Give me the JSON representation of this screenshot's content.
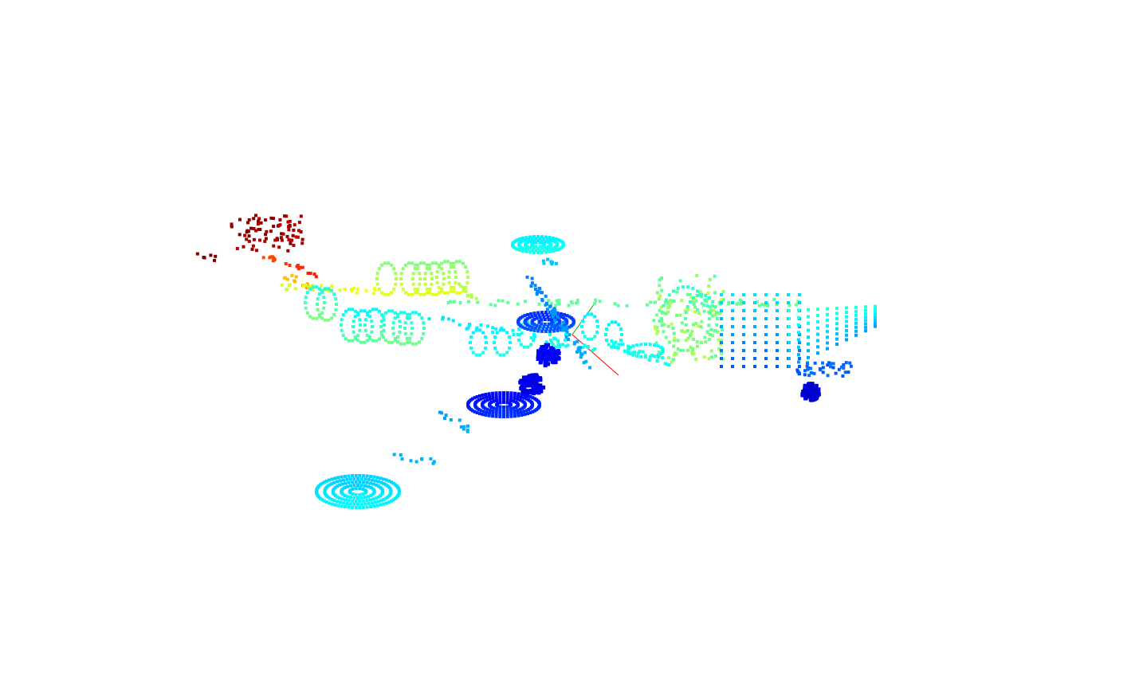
{
  "scene": {
    "background_color": "#ffffff",
    "colormap": "jet",
    "colormap_stops": [
      "#00007f",
      "#0000ff",
      "#007fff",
      "#00ffff",
      "#7fff7f",
      "#ffff00",
      "#ff7f00",
      "#ff0000",
      "#7f0000"
    ],
    "axis_colors": {
      "x": "#ff0000",
      "y": "#00aa00"
    }
  }
}
